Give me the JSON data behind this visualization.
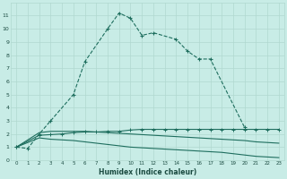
{
  "xlabel": "Humidex (Indice chaleur)",
  "bg_color": "#c8ece6",
  "grid_color": "#b0d8d0",
  "line_color": "#1e6e5e",
  "ylim": [
    0,
    12
  ],
  "xlim": [
    -0.5,
    23.5
  ],
  "yticks": [
    0,
    1,
    2,
    3,
    4,
    5,
    6,
    7,
    8,
    9,
    10,
    11
  ],
  "xticks": [
    0,
    1,
    2,
    3,
    4,
    5,
    6,
    7,
    8,
    9,
    10,
    11,
    12,
    13,
    14,
    15,
    16,
    17,
    18,
    19,
    20,
    21,
    22,
    23
  ],
  "s1_x": [
    0,
    1,
    2,
    3,
    5,
    6,
    8,
    9,
    10,
    11,
    12,
    14,
    15,
    16,
    17,
    20
  ],
  "s1_y": [
    1.0,
    0.9,
    2.0,
    3.0,
    5.0,
    7.5,
    10.0,
    11.2,
    10.8,
    9.5,
    9.7,
    9.2,
    8.3,
    7.7,
    7.7,
    2.5
  ],
  "s2_x": [
    0,
    2,
    3,
    4,
    5,
    6,
    7,
    8,
    9,
    10,
    11,
    12,
    13,
    14,
    15,
    16,
    17,
    18,
    19,
    20,
    21,
    22,
    23
  ],
  "s2_y": [
    1.0,
    2.1,
    2.2,
    2.2,
    2.2,
    2.2,
    2.15,
    2.1,
    2.05,
    2.0,
    1.95,
    1.9,
    1.85,
    1.8,
    1.75,
    1.7,
    1.65,
    1.6,
    1.55,
    1.5,
    1.4,
    1.35,
    1.3
  ],
  "s3_x": [
    0,
    2,
    3,
    4,
    5,
    6,
    7,
    8,
    9,
    10,
    11,
    12,
    13,
    14,
    15,
    16,
    17,
    18,
    19,
    20,
    21,
    22,
    23
  ],
  "s3_y": [
    1.0,
    1.9,
    1.95,
    2.0,
    2.1,
    2.15,
    2.15,
    2.2,
    2.2,
    2.3,
    2.35,
    2.35,
    2.35,
    2.35,
    2.35,
    2.35,
    2.35,
    2.35,
    2.35,
    2.35,
    2.35,
    2.35,
    2.35
  ],
  "s4_x": [
    0,
    2,
    3,
    4,
    5,
    6,
    7,
    8,
    9,
    10,
    11,
    12,
    13,
    14,
    15,
    16,
    17,
    18,
    19,
    20,
    21,
    22,
    23
  ],
  "s4_y": [
    1.0,
    1.7,
    1.6,
    1.55,
    1.5,
    1.4,
    1.3,
    1.2,
    1.1,
    1.0,
    0.95,
    0.9,
    0.85,
    0.8,
    0.75,
    0.7,
    0.65,
    0.6,
    0.5,
    0.4,
    0.3,
    0.25,
    0.2
  ]
}
